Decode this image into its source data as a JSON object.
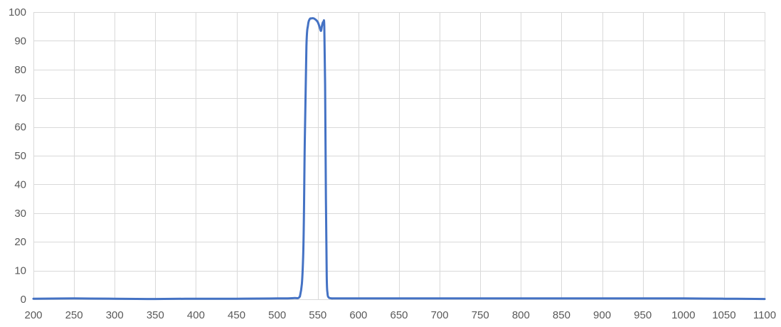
{
  "chart_data": {
    "type": "line",
    "title": "",
    "xlabel": "",
    "ylabel": "",
    "xlim": [
      200,
      1100
    ],
    "ylim": [
      0,
      100
    ],
    "x_ticks": [
      "200",
      "250",
      "300",
      "350",
      "400",
      "450",
      "500",
      "550",
      "600",
      "650",
      "700",
      "750",
      "800",
      "850",
      "900",
      "950",
      "1000",
      "1050",
      "1100"
    ],
    "y_ticks": [
      "0",
      "10",
      "20",
      "30",
      "40",
      "50",
      "60",
      "70",
      "80",
      "90",
      "100"
    ],
    "grid": true,
    "legend": "none",
    "series": [
      {
        "color": "#4472c4",
        "x": [
          200,
          250,
          300,
          340,
          350,
          400,
          450,
          500,
          520,
          528,
          532,
          534,
          536,
          538,
          540,
          542,
          545,
          548,
          550,
          552,
          553,
          554,
          555,
          556,
          557,
          558,
          559,
          560,
          561,
          562,
          563,
          565,
          568,
          570,
          600,
          650,
          700,
          750,
          800,
          850,
          900,
          950,
          1000,
          1050,
          1100
        ],
        "y": [
          0.2,
          0.3,
          0.2,
          0.1,
          0.1,
          0.2,
          0.2,
          0.3,
          0.4,
          1,
          15,
          55,
          88,
          95.5,
          97.5,
          97.8,
          97.8,
          97.2,
          96.5,
          95,
          94,
          93.5,
          95,
          96.2,
          96.5,
          95,
          75,
          35,
          8,
          2,
          0.8,
          0.4,
          0.3,
          0.3,
          0.3,
          0.3,
          0.3,
          0.3,
          0.3,
          0.3,
          0.3,
          0.3,
          0.3,
          0.2,
          0.1
        ]
      }
    ]
  }
}
